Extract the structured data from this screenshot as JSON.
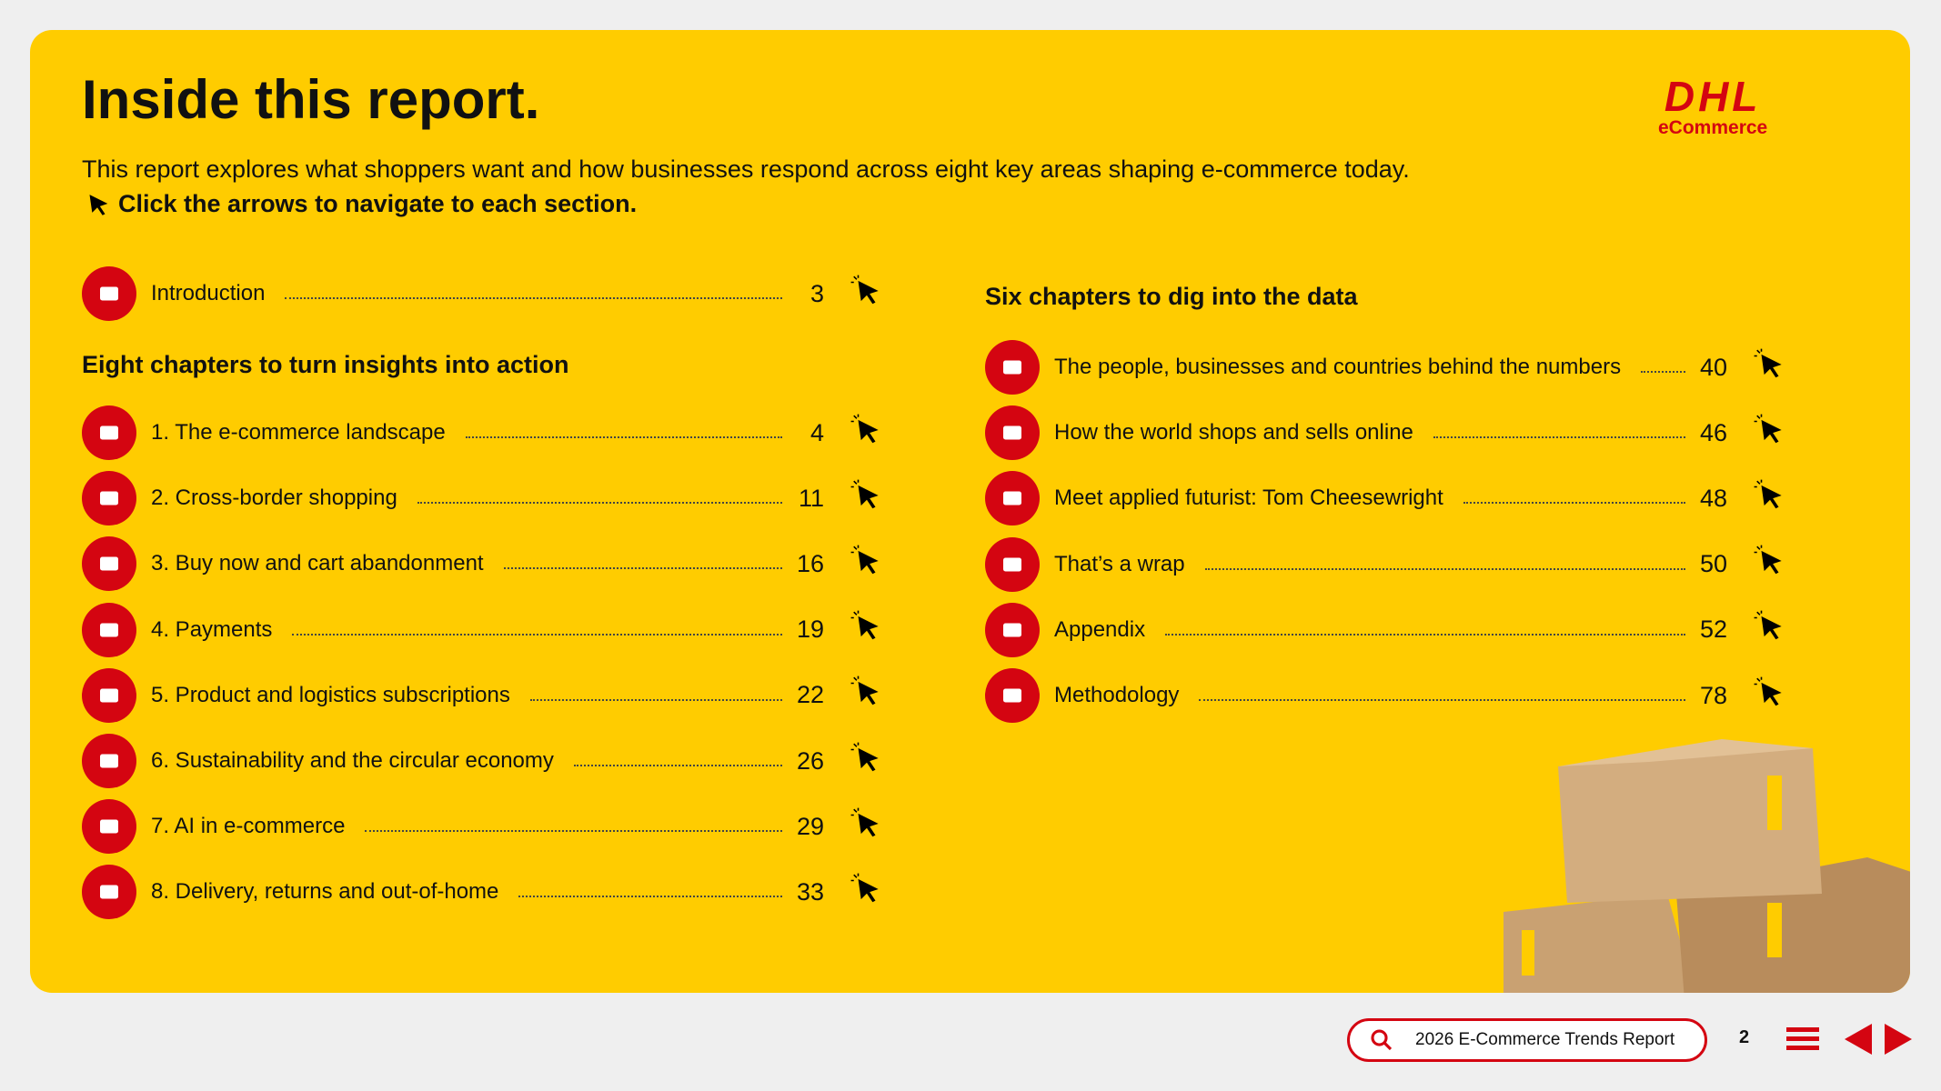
{
  "header": {
    "title": "Inside this report.",
    "intro": "This report explores what shoppers want and how businesses respond across eight key areas shaping e-commerce today.",
    "instruction": "Click the arrows to navigate to each section."
  },
  "logo": {
    "brand": "DHL",
    "sub": "eCommerce"
  },
  "left": {
    "intro_item": {
      "label": "Introduction",
      "page": 3
    },
    "heading": "Eight chapters to turn insights into action",
    "items": [
      {
        "label": "1. The e-commerce landscape",
        "page": 4
      },
      {
        "label": "2. Cross-border shopping",
        "page": 11
      },
      {
        "label": "3. Buy now and cart abandonment",
        "page": 16
      },
      {
        "label": "4. Payments",
        "page": 19
      },
      {
        "label": "5. Product and logistics subscriptions",
        "page": 22
      },
      {
        "label": "6. Sustainability and the circular economy",
        "page": 26
      },
      {
        "label": "7. AI in e-commerce",
        "page": 29
      },
      {
        "label": "8. Delivery, returns and out-of-home",
        "page": 33
      }
    ]
  },
  "right": {
    "heading": "Six chapters to dig into the data",
    "items": [
      {
        "label": "The people, businesses and countries behind the numbers",
        "page": 40
      },
      {
        "label": "How the world shops and sells online",
        "page": 46
      },
      {
        "label": "Meet applied futurist: Tom Cheesewright",
        "page": 48
      },
      {
        "label": "That’s a wrap",
        "page": 50
      },
      {
        "label": "Appendix",
        "page": 52
      },
      {
        "label": "Methodology",
        "page": 78
      }
    ]
  },
  "footer": {
    "search": "2026 E-Commerce Trends Report",
    "page": 2
  }
}
